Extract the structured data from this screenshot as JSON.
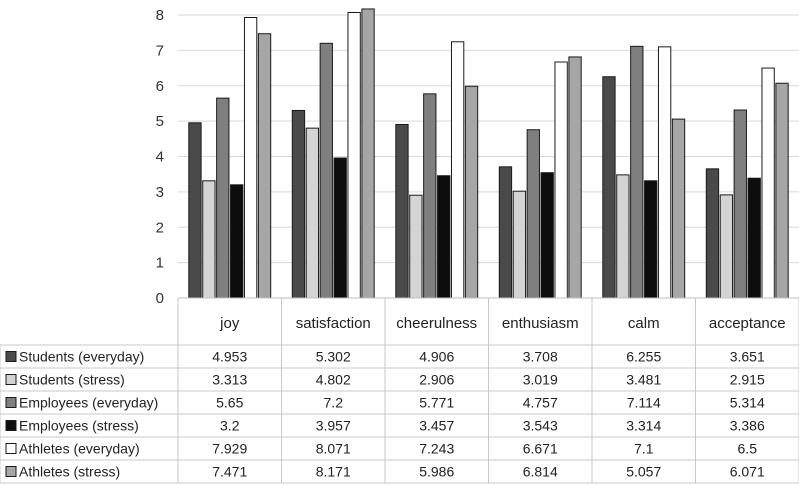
{
  "chart_data": {
    "type": "bar",
    "categories": [
      "joy",
      "satisfaction",
      "cheerulness",
      "enthusiasm",
      "calm",
      "acceptance"
    ],
    "ylim": [
      0,
      8
    ],
    "yticks": [
      0,
      1,
      2,
      3,
      4,
      5,
      6,
      7,
      8
    ],
    "grid": true,
    "legend": "data-table-below",
    "series": [
      {
        "name": "Students (everyday)",
        "values": [
          4.953,
          5.302,
          4.906,
          3.708,
          6.255,
          3.651
        ],
        "labels": [
          "4.953",
          "5.302",
          "4.906",
          "3.708",
          "6.255",
          "3.651"
        ],
        "color": "#4a4a4a"
      },
      {
        "name": "Students (stress)",
        "values": [
          3.313,
          4.802,
          2.906,
          3.019,
          3.481,
          2.915
        ],
        "labels": [
          "3.313",
          "4.802",
          "2.906",
          "3.019",
          "3.481",
          "2.915"
        ],
        "color": "#d4d4d4"
      },
      {
        "name": "Employees (everyday)",
        "values": [
          5.65,
          7.2,
          5.771,
          4.757,
          7.114,
          5.314
        ],
        "labels": [
          "5.65",
          "7.2",
          "5.771",
          "4.757",
          "7.114",
          "5.314"
        ],
        "color": "#7f7f7f"
      },
      {
        "name": "Employees (stress)",
        "values": [
          3.2,
          3.957,
          3.457,
          3.543,
          3.314,
          3.386
        ],
        "labels": [
          "3.2",
          "3.957",
          "3.457",
          "3.543",
          "3.314",
          "3.386"
        ],
        "color": "#0d0d0d"
      },
      {
        "name": "Athletes (everyday)",
        "values": [
          7.929,
          8.071,
          7.243,
          6.671,
          7.1,
          6.5
        ],
        "labels": [
          "7.929",
          "8.071",
          "7.243",
          "6.671",
          "7.1",
          "6.5"
        ],
        "color": "#ffffff"
      },
      {
        "name": "Athletes (stress)",
        "values": [
          7.471,
          8.171,
          5.986,
          6.814,
          5.057,
          6.071
        ],
        "labels": [
          "7.471",
          "8.171",
          "5.986",
          "6.814",
          "5.057",
          "6.071"
        ],
        "color": "#a6a6a6"
      }
    ]
  }
}
